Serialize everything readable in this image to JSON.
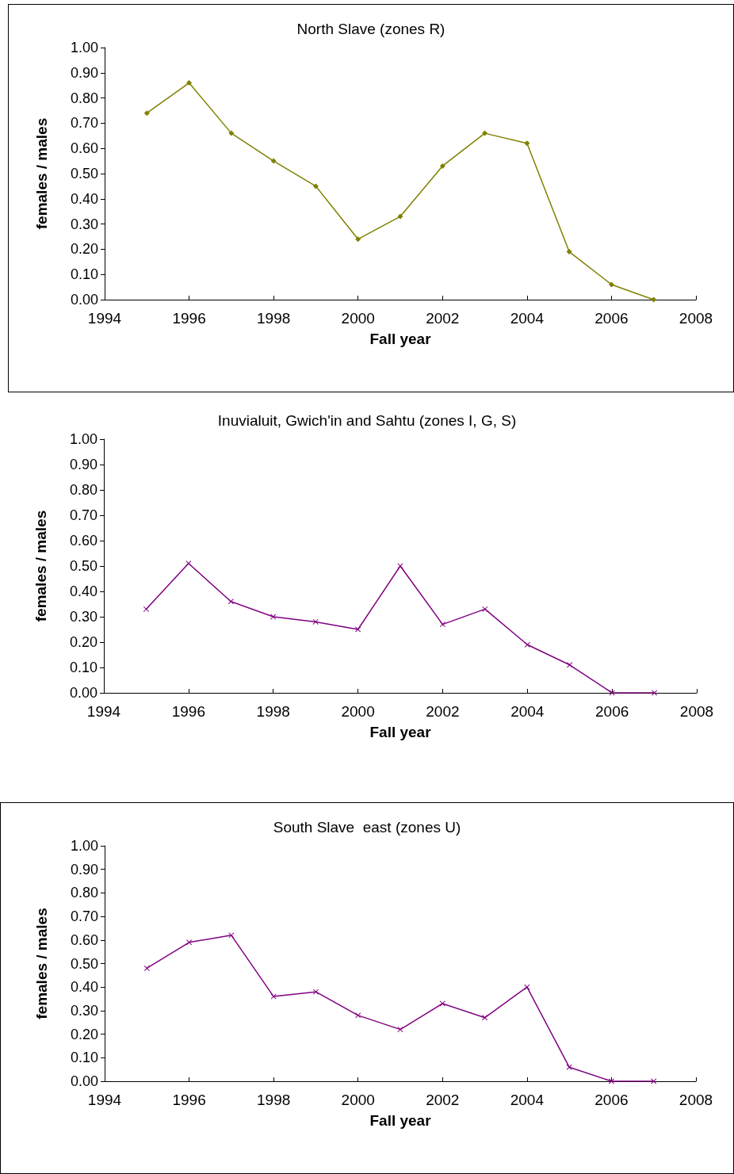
{
  "chart_data": [
    {
      "type": "line",
      "title": "North Slave (zones R)",
      "xlabel": "Fall year",
      "ylabel": "females / males",
      "x": [
        1995,
        1996,
        1997,
        1998,
        1999,
        2000,
        2001,
        2002,
        2003,
        2004,
        2005,
        2006,
        2007
      ],
      "series": [
        {
          "color": "#808000",
          "values": [
            0.74,
            0.86,
            0.66,
            0.55,
            0.45,
            0.24,
            0.33,
            0.53,
            0.66,
            0.62,
            0.19,
            0.06,
            0.0
          ]
        }
      ],
      "xlim": [
        1994,
        2008
      ],
      "xticks": [
        1994,
        1996,
        1998,
        2000,
        2002,
        2004,
        2006,
        2008
      ],
      "ylim": [
        0,
        1
      ],
      "yticks": [
        {
          "value": 0,
          "label": "0.00"
        },
        {
          "value": 0.1,
          "label": "0.10"
        },
        {
          "value": 0.2,
          "label": "0.20"
        },
        {
          "value": 0.3,
          "label": "0.30"
        },
        {
          "value": 0.4,
          "label": "0.40"
        },
        {
          "value": 0.5,
          "label": "0.50"
        },
        {
          "value": 0.6,
          "label": "0.60"
        },
        {
          "value": 0.7,
          "label": "0.70"
        },
        {
          "value": 0.8,
          "label": "0.80"
        },
        {
          "value": 0.9,
          "label": "0.90"
        },
        {
          "value": 1,
          "label": "1.00"
        }
      ],
      "grid": false,
      "marker": "diamond",
      "line_style": "solid"
    },
    {
      "type": "line",
      "title": "Inuvialuit, Gwich'in and Sahtu (zones I, G, S)",
      "xlabel": "Fall year",
      "ylabel": "females / males",
      "x": [
        1995,
        1996,
        1997,
        1998,
        1999,
        2000,
        2001,
        2002,
        2003,
        2004,
        2005,
        2006,
        2007
      ],
      "series": [
        {
          "color": "#800080",
          "values": [
            0.33,
            0.51,
            0.36,
            0.3,
            0.28,
            0.25,
            0.5,
            0.27,
            0.33,
            0.19,
            0.11,
            0.0,
            0.0
          ]
        }
      ],
      "xlim": [
        1994,
        2008
      ],
      "xticks": [
        1994,
        1996,
        1998,
        2000,
        2002,
        2004,
        2006,
        2008
      ],
      "ylim": [
        0,
        1
      ],
      "yticks": [
        {
          "value": 0,
          "label": "0.00"
        },
        {
          "value": 0.1,
          "label": "0.10"
        },
        {
          "value": 0.2,
          "label": "0.20"
        },
        {
          "value": 0.3,
          "label": "0.30"
        },
        {
          "value": 0.4,
          "label": "0.40"
        },
        {
          "value": 0.5,
          "label": "0.50"
        },
        {
          "value": 0.6,
          "label": "0.60"
        },
        {
          "value": 0.7,
          "label": "0.70"
        },
        {
          "value": 0.8,
          "label": "0.80"
        },
        {
          "value": 0.9,
          "label": "0.90"
        },
        {
          "value": 1,
          "label": "1.00"
        }
      ],
      "grid": false,
      "marker": "cross",
      "line_style": "solid"
    },
    {
      "type": "line",
      "title": "South Slave  east (zones U)",
      "xlabel": "Fall year",
      "ylabel": "females / males",
      "x": [
        1995,
        1996,
        1997,
        1998,
        1999,
        2000,
        2001,
        2002,
        2003,
        2004,
        2005,
        2006,
        2007
      ],
      "series": [
        {
          "color": "#800080",
          "values": [
            0.48,
            0.59,
            0.62,
            0.36,
            0.38,
            0.28,
            0.22,
            0.33,
            0.27,
            0.4,
            0.06,
            0.0,
            0.0
          ]
        }
      ],
      "xlim": [
        1994,
        2008
      ],
      "xticks": [
        1994,
        1996,
        1998,
        2000,
        2002,
        2004,
        2006,
        2008
      ],
      "ylim": [
        0,
        1
      ],
      "yticks": [
        {
          "value": 0,
          "label": "0.00"
        },
        {
          "value": 0.1,
          "label": "0.10"
        },
        {
          "value": 0.2,
          "label": "0.20"
        },
        {
          "value": 0.3,
          "label": "0.30"
        },
        {
          "value": 0.4,
          "label": "0.40"
        },
        {
          "value": 0.5,
          "label": "0.50"
        },
        {
          "value": 0.6,
          "label": "0.60"
        },
        {
          "value": 0.7,
          "label": "0.70"
        },
        {
          "value": 0.8,
          "label": "0.80"
        },
        {
          "value": 0.9,
          "label": "0.90"
        },
        {
          "value": 1,
          "label": "1.00"
        }
      ],
      "grid": false,
      "marker": "cross",
      "line_style": "solid"
    }
  ]
}
